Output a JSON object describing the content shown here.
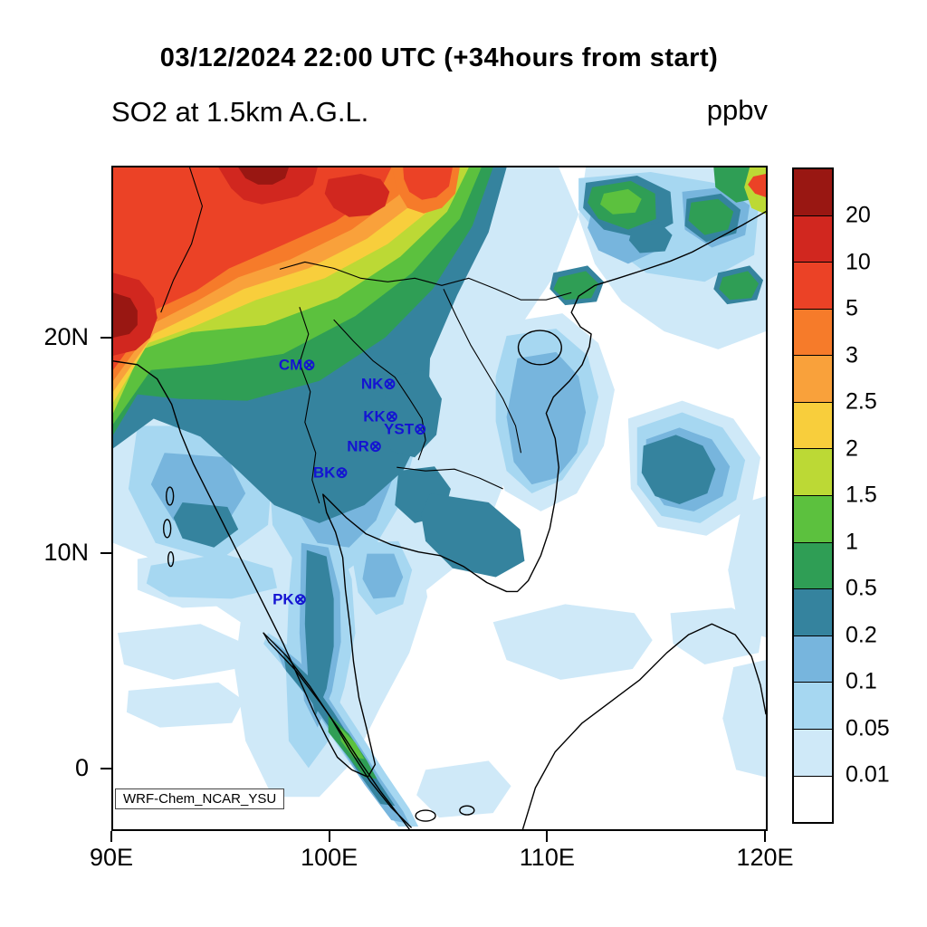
{
  "titles": {
    "datetime": "03/12/2024 22:00 UTC (+34hours from start)",
    "variable": "SO2 at 1.5km A.G.L.",
    "units": "ppbv"
  },
  "watermark": "WRF-Chem_NCAR_YSU",
  "axes": {
    "x_ticks": [
      {
        "label": "90E",
        "lon": 90
      },
      {
        "label": "100E",
        "lon": 100
      },
      {
        "label": "110E",
        "lon": 110
      },
      {
        "label": "120E",
        "lon": 120
      }
    ],
    "y_ticks": [
      {
        "label": "20N",
        "lat": 20
      },
      {
        "label": "10N",
        "lat": 10
      },
      {
        "label": "0",
        "lat": 0
      }
    ]
  },
  "chart_data": {
    "type": "heatmap",
    "title": "SO2 at 1.5km A.G.L.",
    "valid_time": "03/12/2024 22:00 UTC",
    "forecast_note": "+34hours from start",
    "units": "ppbv",
    "model_label": "WRF-Chem_NCAR_YSU",
    "lon_range_deg_east": [
      90,
      120.1
    ],
    "lat_range_deg_north": [
      -2.9,
      27.6
    ],
    "contour_levels_ppbv": [
      0.01,
      0.05,
      0.1,
      0.2,
      0.5,
      1,
      1.5,
      2,
      2.5,
      3,
      5,
      10,
      20
    ],
    "colorbar_labels": [
      "20",
      "10",
      "5",
      "3",
      "2.5",
      "2",
      "1.5",
      "1",
      "0.5",
      "0.2",
      "0.1",
      "0.05",
      "0.01"
    ],
    "palette_low_to_high": [
      "#ffffff",
      "#cfe9f8",
      "#a6d7f1",
      "#77b5dd",
      "#35839e",
      "#2f9e55",
      "#5cc13e",
      "#bcd935",
      "#f8ce3c",
      "#f9a13b",
      "#f67b2a",
      "#eb4226",
      "#d1271f",
      "#991712"
    ],
    "legend_position": "right",
    "station_color": "#1414d2",
    "stations": [
      {
        "id": "CM",
        "label": "CM⊗",
        "lon": 99.0,
        "lat": 18.7
      },
      {
        "id": "NK",
        "label": "NK⊗",
        "lon": 102.7,
        "lat": 17.8
      },
      {
        "id": "KK",
        "label": "KK⊗",
        "lon": 102.8,
        "lat": 16.3
      },
      {
        "id": "YST",
        "label": "YST⊗",
        "lon": 104.1,
        "lat": 15.7
      },
      {
        "id": "NR",
        "label": "NR⊗",
        "lon": 102.05,
        "lat": 14.9
      },
      {
        "id": "BK",
        "label": "BK⊗",
        "lon": 100.5,
        "lat": 13.7
      },
      {
        "id": "PK",
        "label": "PK⊗",
        "lon": 98.6,
        "lat": 7.8
      }
    ]
  }
}
